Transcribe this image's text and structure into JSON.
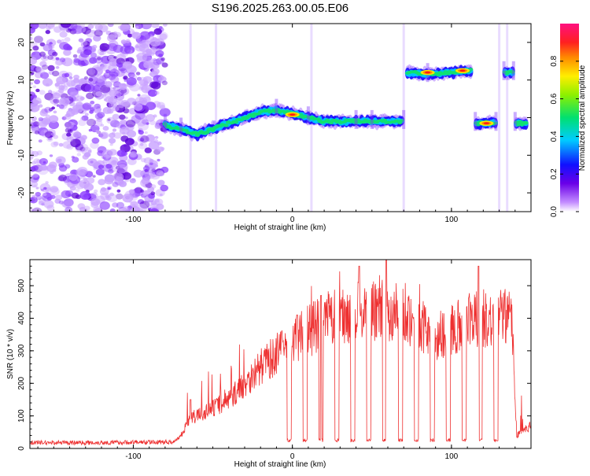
{
  "title": "S196.2025.263.00.05.E06",
  "chart_data": [
    {
      "type": "heatmap",
      "xlabel": "Height of straight line (km)",
      "ylabel": "Frequency (Hz)",
      "xlim": [
        -165,
        150
      ],
      "ylim": [
        -25,
        25
      ],
      "x_ticks": [
        -100,
        0,
        100
      ],
      "y_ticks": [
        -20,
        -10,
        0,
        10,
        20
      ],
      "noise_region": {
        "x": [
          -165,
          -80
        ],
        "y": [
          -25,
          25
        ]
      },
      "band_track": [
        {
          "x": -80,
          "freq": -2
        },
        {
          "x": -70,
          "freq": -3
        },
        {
          "x": -60,
          "freq": -4.5
        },
        {
          "x": -50,
          "freq": -3
        },
        {
          "x": -40,
          "freq": -1.5
        },
        {
          "x": -30,
          "freq": 0
        },
        {
          "x": -20,
          "freq": 1.5
        },
        {
          "x": -10,
          "freq": 2
        },
        {
          "x": 0,
          "freq": 1
        },
        {
          "x": 10,
          "freq": 0
        },
        {
          "x": 20,
          "freq": -1
        },
        {
          "x": 30,
          "freq": -1
        },
        {
          "x": 40,
          "freq": -1
        },
        {
          "x": 50,
          "freq": -1
        },
        {
          "x": 60,
          "freq": -1
        },
        {
          "x": 70,
          "freq": -1
        },
        {
          "x": 72,
          "freq": 12
        },
        {
          "x": 85,
          "freq": 11.5
        },
        {
          "x": 100,
          "freq": 12
        },
        {
          "x": 113,
          "freq": 12.5
        },
        {
          "x": 115,
          "freq": -1.5
        },
        {
          "x": 128,
          "freq": -1.5
        },
        {
          "x": 133,
          "freq": 12
        },
        {
          "x": 139,
          "freq": 12
        },
        {
          "x": 140,
          "freq": -1.5
        },
        {
          "x": 148,
          "freq": -1.5
        }
      ],
      "band_gaps": [
        [
          70,
          72
        ],
        [
          113,
          115
        ],
        [
          128,
          133
        ],
        [
          139,
          140
        ]
      ],
      "peaks": [
        {
          "x": 0,
          "freq": 0.8
        },
        {
          "x": 85,
          "freq": 12
        },
        {
          "x": 107,
          "freq": 12.5
        },
        {
          "x": 122,
          "freq": -1.5
        }
      ],
      "colorbar": {
        "label": "Normalized spectral amplitude",
        "ticks": [
          0.0,
          0.2,
          0.4,
          0.6,
          0.8
        ],
        "range": [
          0,
          1
        ]
      }
    },
    {
      "type": "line",
      "xlabel": "Height of straight line (km)",
      "ylabel": "SNR (10 * v/v)",
      "xlim": [
        -165,
        150
      ],
      "ylim": [
        0,
        580
      ],
      "x_ticks": [
        -100,
        0,
        100
      ],
      "y_ticks": [
        0,
        100,
        200,
        300,
        400,
        500
      ],
      "color": "#ee3030",
      "envelope": [
        {
          "x": -165,
          "snr": 18
        },
        {
          "x": -120,
          "snr": 18
        },
        {
          "x": -75,
          "snr": 20
        },
        {
          "x": -70,
          "snr": 40
        },
        {
          "x": -65,
          "snr": 90
        },
        {
          "x": -55,
          "snr": 110
        },
        {
          "x": -40,
          "snr": 150
        },
        {
          "x": -30,
          "snr": 200
        },
        {
          "x": -20,
          "snr": 250
        },
        {
          "x": -10,
          "snr": 290
        },
        {
          "x": 0,
          "snr": 330
        },
        {
          "x": 10,
          "snr": 360
        },
        {
          "x": 20,
          "snr": 390
        },
        {
          "x": 30,
          "snr": 410
        },
        {
          "x": 40,
          "snr": 420
        },
        {
          "x": 50,
          "snr": 420
        },
        {
          "x": 60,
          "snr": 425
        },
        {
          "x": 70,
          "snr": 420
        },
        {
          "x": 80,
          "snr": 380
        },
        {
          "x": 90,
          "snr": 340
        },
        {
          "x": 100,
          "snr": 370
        },
        {
          "x": 110,
          "snr": 390
        },
        {
          "x": 120,
          "snr": 400
        },
        {
          "x": 130,
          "snr": 400
        },
        {
          "x": 138,
          "snr": 400
        },
        {
          "x": 141,
          "snr": 40
        },
        {
          "x": 150,
          "snr": 70
        }
      ],
      "dropouts": [
        -2,
        8,
        18,
        28,
        38,
        48,
        58,
        68,
        78,
        88,
        98,
        108,
        118,
        128
      ],
      "spikes": [
        {
          "x": -64,
          "snr": 150
        },
        {
          "x": 3,
          "snr": 410
        },
        {
          "x": 18,
          "snr": 470
        },
        {
          "x": 42,
          "snr": 560
        },
        {
          "x": 59,
          "snr": 580
        },
        {
          "x": 117,
          "snr": 560
        }
      ]
    }
  ]
}
